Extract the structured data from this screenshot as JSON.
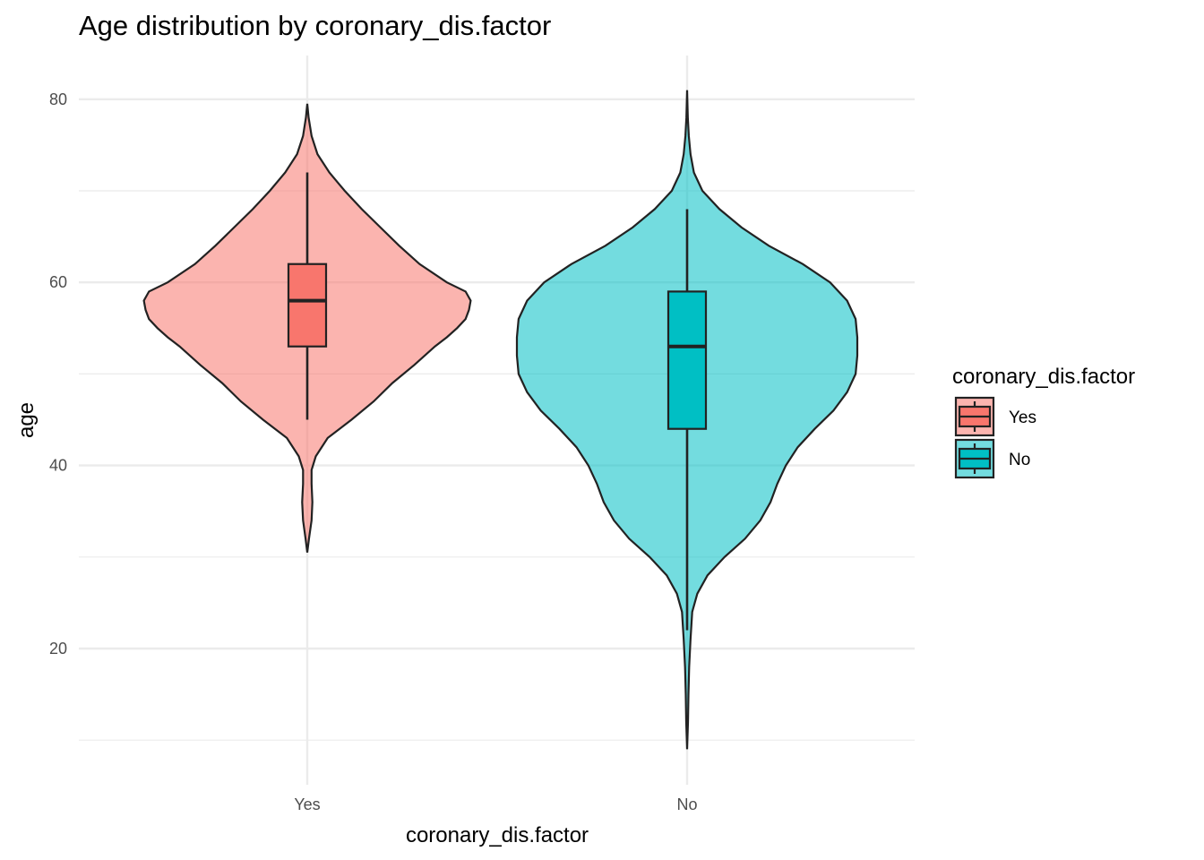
{
  "chart_data": {
    "type": "violin",
    "title": "Age distribution by coronary_dis.factor",
    "xlabel": "coronary_dis.factor",
    "ylabel": "age",
    "categories": [
      "Yes",
      "No"
    ],
    "ylim": [
      8,
      85
    ],
    "y_ticks": [
      20,
      40,
      60,
      80
    ],
    "y_minor_ticks": [
      10,
      30,
      50,
      70
    ],
    "grid": true,
    "legend": {
      "title": "coronary_dis.factor",
      "position": "right",
      "entries": [
        "Yes",
        "No"
      ]
    },
    "series": [
      {
        "name": "Yes",
        "color": "#F8766D",
        "box": {
          "whisker_low": 45,
          "q1": 53,
          "median": 58,
          "q3": 62,
          "whisker_high": 72
        },
        "violin": {
          "min": 30.5,
          "max": 79.5,
          "profile": [
            [
              30.5,
              0.0
            ],
            [
              32,
              0.01
            ],
            [
              34,
              0.025
            ],
            [
              36,
              0.03
            ],
            [
              38,
              0.025
            ],
            [
              39.5,
              0.025
            ],
            [
              41,
              0.05
            ],
            [
              43,
              0.12
            ],
            [
              45,
              0.26
            ],
            [
              47,
              0.39
            ],
            [
              49,
              0.5
            ],
            [
              51,
              0.63
            ],
            [
              53,
              0.75
            ],
            [
              54,
              0.82
            ],
            [
              55,
              0.88
            ],
            [
              56,
              0.93
            ],
            [
              57,
              0.95
            ],
            [
              58,
              0.96
            ],
            [
              59,
              0.93
            ],
            [
              60,
              0.82
            ],
            [
              62,
              0.66
            ],
            [
              64,
              0.54
            ],
            [
              66,
              0.43
            ],
            [
              68,
              0.32
            ],
            [
              70,
              0.22
            ],
            [
              72,
              0.13
            ],
            [
              74,
              0.06
            ],
            [
              76,
              0.025
            ],
            [
              78,
              0.008
            ],
            [
              79.5,
              0.0
            ]
          ]
        }
      },
      {
        "name": "No",
        "color": "#00BFC4",
        "box": {
          "whisker_low": 22,
          "q1": 44,
          "median": 53,
          "q3": 59,
          "whisker_high": 68
        },
        "violin": {
          "min": 9,
          "max": 81,
          "profile": [
            [
              9,
              0.0
            ],
            [
              12,
              0.005
            ],
            [
              15,
              0.008
            ],
            [
              18,
              0.012
            ],
            [
              21,
              0.02
            ],
            [
              24,
              0.03
            ],
            [
              26,
              0.06
            ],
            [
              28,
              0.12
            ],
            [
              30,
              0.22
            ],
            [
              32,
              0.34
            ],
            [
              34,
              0.43
            ],
            [
              36,
              0.49
            ],
            [
              38,
              0.53
            ],
            [
              40,
              0.58
            ],
            [
              42,
              0.65
            ],
            [
              44,
              0.75
            ],
            [
              46,
              0.86
            ],
            [
              48,
              0.94
            ],
            [
              50,
              0.99
            ],
            [
              52,
              1.0
            ],
            [
              54,
              1.0
            ],
            [
              56,
              0.99
            ],
            [
              58,
              0.94
            ],
            [
              60,
              0.84
            ],
            [
              62,
              0.68
            ],
            [
              64,
              0.48
            ],
            [
              66,
              0.32
            ],
            [
              68,
              0.19
            ],
            [
              70,
              0.09
            ],
            [
              72,
              0.04
            ],
            [
              74,
              0.02
            ],
            [
              76,
              0.01
            ],
            [
              78,
              0.004
            ],
            [
              81,
              0.0
            ]
          ]
        }
      }
    ]
  }
}
